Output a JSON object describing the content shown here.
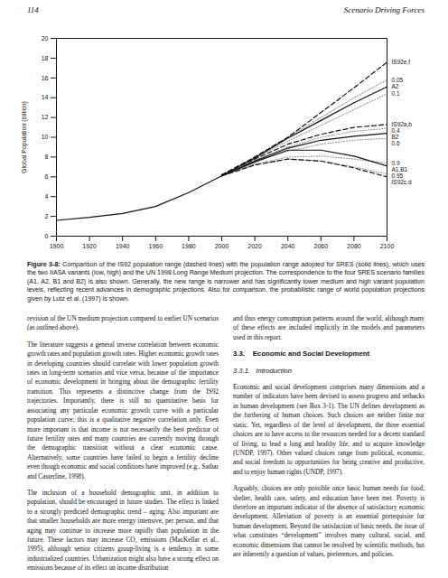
{
  "header": {
    "page_number": "114",
    "section": "Scenario Driving Forces"
  },
  "chart_data": {
    "type": "line",
    "y_label": "Global Population (billion)",
    "x": [
      1900,
      1920,
      1940,
      1960,
      1980,
      2000,
      2020,
      2040,
      2060,
      2080,
      2100
    ],
    "xlim": [
      1900,
      2100
    ],
    "xticks": [
      1900,
      1920,
      1940,
      1960,
      1980,
      2000,
      2020,
      2040,
      2060,
      2080,
      2100
    ],
    "ylim": [
      0,
      20
    ],
    "yticks": [
      0,
      2,
      4,
      6,
      8,
      10,
      12,
      14,
      16,
      18,
      20
    ],
    "series": [
      {
        "color": "#111111",
        "line_style": "solid",
        "values": [
          1.6,
          1.9,
          2.3,
          3.0,
          4.4,
          6.1,
          null,
          null,
          null,
          null,
          null
        ]
      },
      {
        "name": "0.05",
        "color": "#999999",
        "line_style": "dotted",
        "values": [
          null,
          null,
          null,
          null,
          null,
          6.1,
          8.0,
          10.0,
          12.0,
          14.0,
          15.8
        ]
      },
      {
        "name": "0.1",
        "color": "#999999",
        "line_style": "dotted",
        "values": [
          null,
          null,
          null,
          null,
          null,
          6.1,
          7.9,
          9.6,
          11.2,
          12.8,
          14.4
        ]
      },
      {
        "name": "0.4",
        "color": "#999999",
        "line_style": "dotted",
        "values": [
          null,
          null,
          null,
          null,
          null,
          6.1,
          7.7,
          9.0,
          10.0,
          10.6,
          10.9
        ]
      },
      {
        "name": "0.6",
        "color": "#999999",
        "line_style": "dotted",
        "values": [
          null,
          null,
          null,
          null,
          null,
          6.1,
          7.6,
          8.6,
          9.3,
          9.7,
          9.9
        ]
      },
      {
        "name": "0.9",
        "color": "#999999",
        "line_style": "dotted",
        "values": [
          null,
          null,
          null,
          null,
          null,
          6.1,
          7.3,
          8.0,
          8.1,
          7.8,
          7.4
        ]
      },
      {
        "name": "0.95",
        "color": "#999999",
        "line_style": "dotted",
        "values": [
          null,
          null,
          null,
          null,
          null,
          6.1,
          7.2,
          7.8,
          7.6,
          7.0,
          6.3
        ]
      },
      {
        "name": "IS92e,f",
        "color": "#111111",
        "line_style": "dashed",
        "values": [
          null,
          null,
          null,
          null,
          null,
          6.2,
          8.0,
          10.0,
          12.5,
          15.0,
          17.6
        ]
      },
      {
        "name": "IS92a,b",
        "color": "#111111",
        "line_style": "dashed",
        "values": [
          null,
          null,
          null,
          null,
          null,
          6.2,
          7.8,
          9.3,
          10.3,
          11.0,
          11.3
        ]
      },
      {
        "name": "IS92c,d",
        "color": "#111111",
        "line_style": "dashed",
        "values": [
          null,
          null,
          null,
          null,
          null,
          6.1,
          7.2,
          7.8,
          7.6,
          6.9,
          6.0
        ]
      },
      {
        "name": "A2",
        "color": "#111111",
        "line_style": "solid",
        "values": [
          null,
          null,
          null,
          null,
          null,
          6.1,
          7.9,
          9.9,
          11.7,
          13.5,
          15.1
        ]
      },
      {
        "name": "B2",
        "color": "#111111",
        "line_style": "solid",
        "values": [
          null,
          null,
          null,
          null,
          null,
          6.1,
          7.6,
          8.9,
          9.7,
          10.1,
          10.4
        ]
      },
      {
        "name": "A1,B1",
        "color": "#111111",
        "line_style": "solid",
        "values": [
          null,
          null,
          null,
          null,
          null,
          6.1,
          7.5,
          8.7,
          8.7,
          8.1,
          7.1
        ]
      }
    ]
  },
  "caption": {
    "label": "Figure 3-8:",
    "text": "Comparison of the IS92 population range (dashed lines) with the population range adopted for SRES (solid lines), which uses the two IIASA variants (low, high) and the UN 1998 Long Range Medium projection. The correspondence to the four SRES scenario families (A1, A2, B1 and B2) is also shown. Generally, the new range is narrower and has significantly lower medium and high variant population levels, reflecting recent advances in demographic projections. Also for comparison, the probabilistic range of world population projections given by Lutz et al. (1997) is shown."
  },
  "columns": [
    [
      {
        "kind": "p",
        "text": "revision of the UN medium projection compared to earlier UN scenarios (as outlined above)."
      },
      {
        "kind": "p",
        "text": "The literature suggests a general inverse correlation between economic growth rates and population growth rates. Higher economic growth rates in developing countries should correlate with lower population growth rates in long-term scenarios and vice versa, because of the importance of economic development in bringing about the demographic fertility transition. This represents a distinctive change from the IS92 trajectories. Importantly, there is still no quantitative basis for associating any particular economic growth curve with a particular population curve; this is a qualitative negative correlation only. Even more important is that income is not necessarily the best predictor of future fertility rates and many countries are currently moving through the demographic transition without a clear economic cause. Alternatively, some countries have failed to begin a fertility decline even though economic and social conditions have improved (e.g., Sathar and Casterline, 1998)."
      },
      {
        "kind": "p",
        "text": "The inclusion of a household demographic unit, in addition to population, should be encouraged in future studies. The effect is linked to a strongly predicted demographic trend – aging. Also important are that smaller households are more energy intensive, per person, and that aging may continue to increase more rapidly than population in the future. These factors may increase CO₂ emissions (MacKellar et al., 1995), although senior citizens group-living is a tendency in some industrialized countries. Urbanization might also have a strong effect on emissions because of its effect on income distribution"
      }
    ],
    [
      {
        "kind": "p",
        "text": "and thus energy consumption patterns around the world, although many of these effects are included implicitly in the models and parameters used in this report."
      },
      {
        "kind": "h3",
        "text": "3.3.    Economic and Social Development"
      },
      {
        "kind": "h4",
        "text": "3.3.1.   Introduction"
      },
      {
        "kind": "p",
        "text": "Economic and social development comprises many dimensions and a number of indicators have been devised to assess progress and setbacks in human development (see Box 3-1). The UN defines development as the furthering of human choices. Such choices are neither finite nor static. Yet, regardless of the level of development, the three essential choices are to have access to the resources needed for a decent standard of living, to lead a long and healthy life, and to acquire knowledge (UNDP, 1997). Other valued choices range from political, economic, and social freedom to opportunities for being creative and productive, and to enjoy human rights (UNDP, 1997)."
      },
      {
        "kind": "p",
        "text": "Arguably, choices are only possible once basic human needs for food, shelter, health care, safety, and education have been met. Poverty is therefore an important indicator of the absence of satisfactory economic development. Alleviation of poverty is an essential prerequisite for human development. Beyond the satisfaction of basic needs, the issue of what constitutes “development” involves many cultural, social, and economic dimensions that cannot be resolved by scientific methods, but are inherently a question of values, preferences, and policies."
      }
    ]
  ]
}
